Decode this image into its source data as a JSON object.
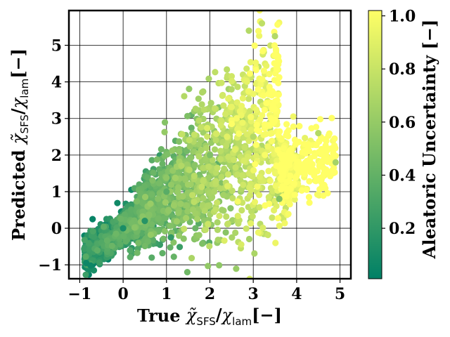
{
  "chart_data": {
    "type": "scatter",
    "xlabel": {
      "prefix": "True ",
      "symbol": "χ",
      "sub1": "SFS",
      "sep": "/",
      "symbol2": "χ",
      "sub2": "lam",
      "unit": "[−]"
    },
    "ylabel": {
      "prefix": "Predicted ",
      "symbol": "χ",
      "sub1": "SFS",
      "sep": "/",
      "symbol2": "χ",
      "sub2": "lam",
      "unit": "[−]"
    },
    "xlim": [
      -1.25,
      5.25
    ],
    "ylim": [
      -1.38,
      5.95
    ],
    "x_ticks": [
      -1,
      0,
      1,
      2,
      3,
      4,
      5
    ],
    "x_tick_labels": [
      "−1",
      "0",
      "1",
      "2",
      "3",
      "4",
      "5"
    ],
    "y_ticks": [
      -1,
      0,
      1,
      2,
      3,
      4,
      5
    ],
    "y_tick_labels": [
      "−1",
      "0",
      "1",
      "2",
      "3",
      "4",
      "5"
    ],
    "grid": true,
    "colorbar": {
      "label": "Aleatoric Uncertainty [−]",
      "range": [
        0.01,
        1.02
      ],
      "ticks": [
        0.2,
        0.4,
        0.6,
        0.8,
        1.0
      ],
      "tick_labels": [
        "0.2",
        "0.4",
        "0.6",
        "0.8",
        "1.0"
      ],
      "colormap": "summer",
      "colormap_stops": [
        "#008066",
        "#ffff66"
      ]
    },
    "points_sample": [
      {
        "x": -0.85,
        "y": -0.95,
        "c": 0.05
      },
      {
        "x": -0.75,
        "y": -1.02,
        "c": 0.05
      },
      {
        "x": 0.0,
        "y": 0.0,
        "c": 0.1
      },
      {
        "x": 0.5,
        "y": 0.2,
        "c": 0.15
      },
      {
        "x": 1.0,
        "y": 1.0,
        "c": 0.35
      },
      {
        "x": 2.0,
        "y": 2.0,
        "c": 0.5
      },
      {
        "x": 3.0,
        "y": 2.5,
        "c": 0.7
      },
      {
        "x": 2.9,
        "y": 5.4,
        "c": 0.7
      },
      {
        "x": 3.2,
        "y": 5.6,
        "c": 0.75
      },
      {
        "x": 3.5,
        "y": 5.25,
        "c": 0.7
      },
      {
        "x": 3.6,
        "y": 0.8,
        "c": 0.5
      },
      {
        "x": 4.9,
        "y": 1.8,
        "c": 0.65
      },
      {
        "x": 4.5,
        "y": 2.6,
        "c": 0.7
      },
      {
        "x": 1.1,
        "y": -0.25,
        "c": 0.2
      }
    ]
  }
}
